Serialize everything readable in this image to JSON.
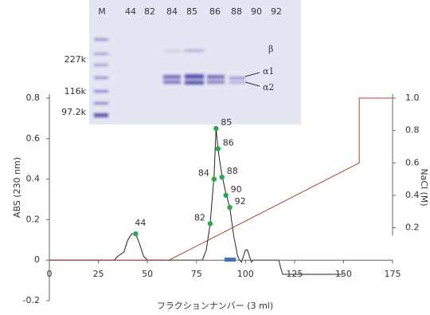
{
  "chart_data": {
    "type": "line",
    "x_label": "フラクションナンバー (3 ml)",
    "y_label": "ABS (230 nm)",
    "y2_label": "NaCl (M)",
    "xlim": [
      0,
      175
    ],
    "xticks": [
      0,
      25,
      50,
      75,
      100,
      125,
      150,
      175
    ],
    "ylim": [
      -0.2,
      0.8
    ],
    "yticks": [
      -0.2,
      0,
      0.2,
      0.4,
      0.6,
      0.8
    ],
    "y2lim": [
      -0.25,
      1.0
    ],
    "y2ticks": [
      0.2,
      0.4,
      0.6,
      0.8,
      {
        "value": 1.0,
        "label": "1.0"
      }
    ],
    "series": [
      {
        "color": "#222222",
        "x": [
          0,
          33,
          35,
          38,
          40,
          42,
          44,
          46,
          48,
          50,
          52,
          78,
          80,
          82,
          83,
          84,
          85,
          86,
          87,
          88,
          90,
          92,
          94,
          96,
          97,
          98,
          100,
          101,
          102,
          103,
          104,
          117,
          118,
          119,
          150
        ],
        "values": [
          0,
          0,
          0.02,
          0.04,
          0.1,
          0.13,
          0.13,
          0.08,
          0.02,
          0,
          0,
          0,
          0.05,
          0.18,
          0.3,
          0.42,
          0.65,
          0.55,
          0.48,
          0.42,
          0.33,
          0.26,
          0.12,
          0.02,
          0,
          -0.01,
          0.05,
          0.05,
          0.02,
          -0.01,
          0,
          0,
          -0.04,
          -0.07,
          -0.07
        ]
      },
      {
        "color": "#2ca84a",
        "type": "scatter",
        "x": [
          44,
          82,
          84,
          85,
          86,
          88,
          90,
          92
        ],
        "values": [
          0.13,
          0.18,
          0.4,
          0.65,
          0.55,
          0.41,
          0.32,
          0.26
        ]
      },
      {
        "color": "#b0403a",
        "axis": "y2",
        "x": [
          0,
          61,
          158,
          158,
          175
        ],
        "values": [
          0,
          0,
          0.6,
          1.0,
          1.0
        ]
      }
    ],
    "gel": {
      "lanes": [
        "M",
        "44",
        "82",
        "84",
        "85",
        "86",
        "88",
        "90",
        "92"
      ],
      "markers": [
        "227k",
        "116k",
        "97.2k"
      ],
      "bands": [
        "β",
        "α1",
        "α2"
      ]
    }
  }
}
